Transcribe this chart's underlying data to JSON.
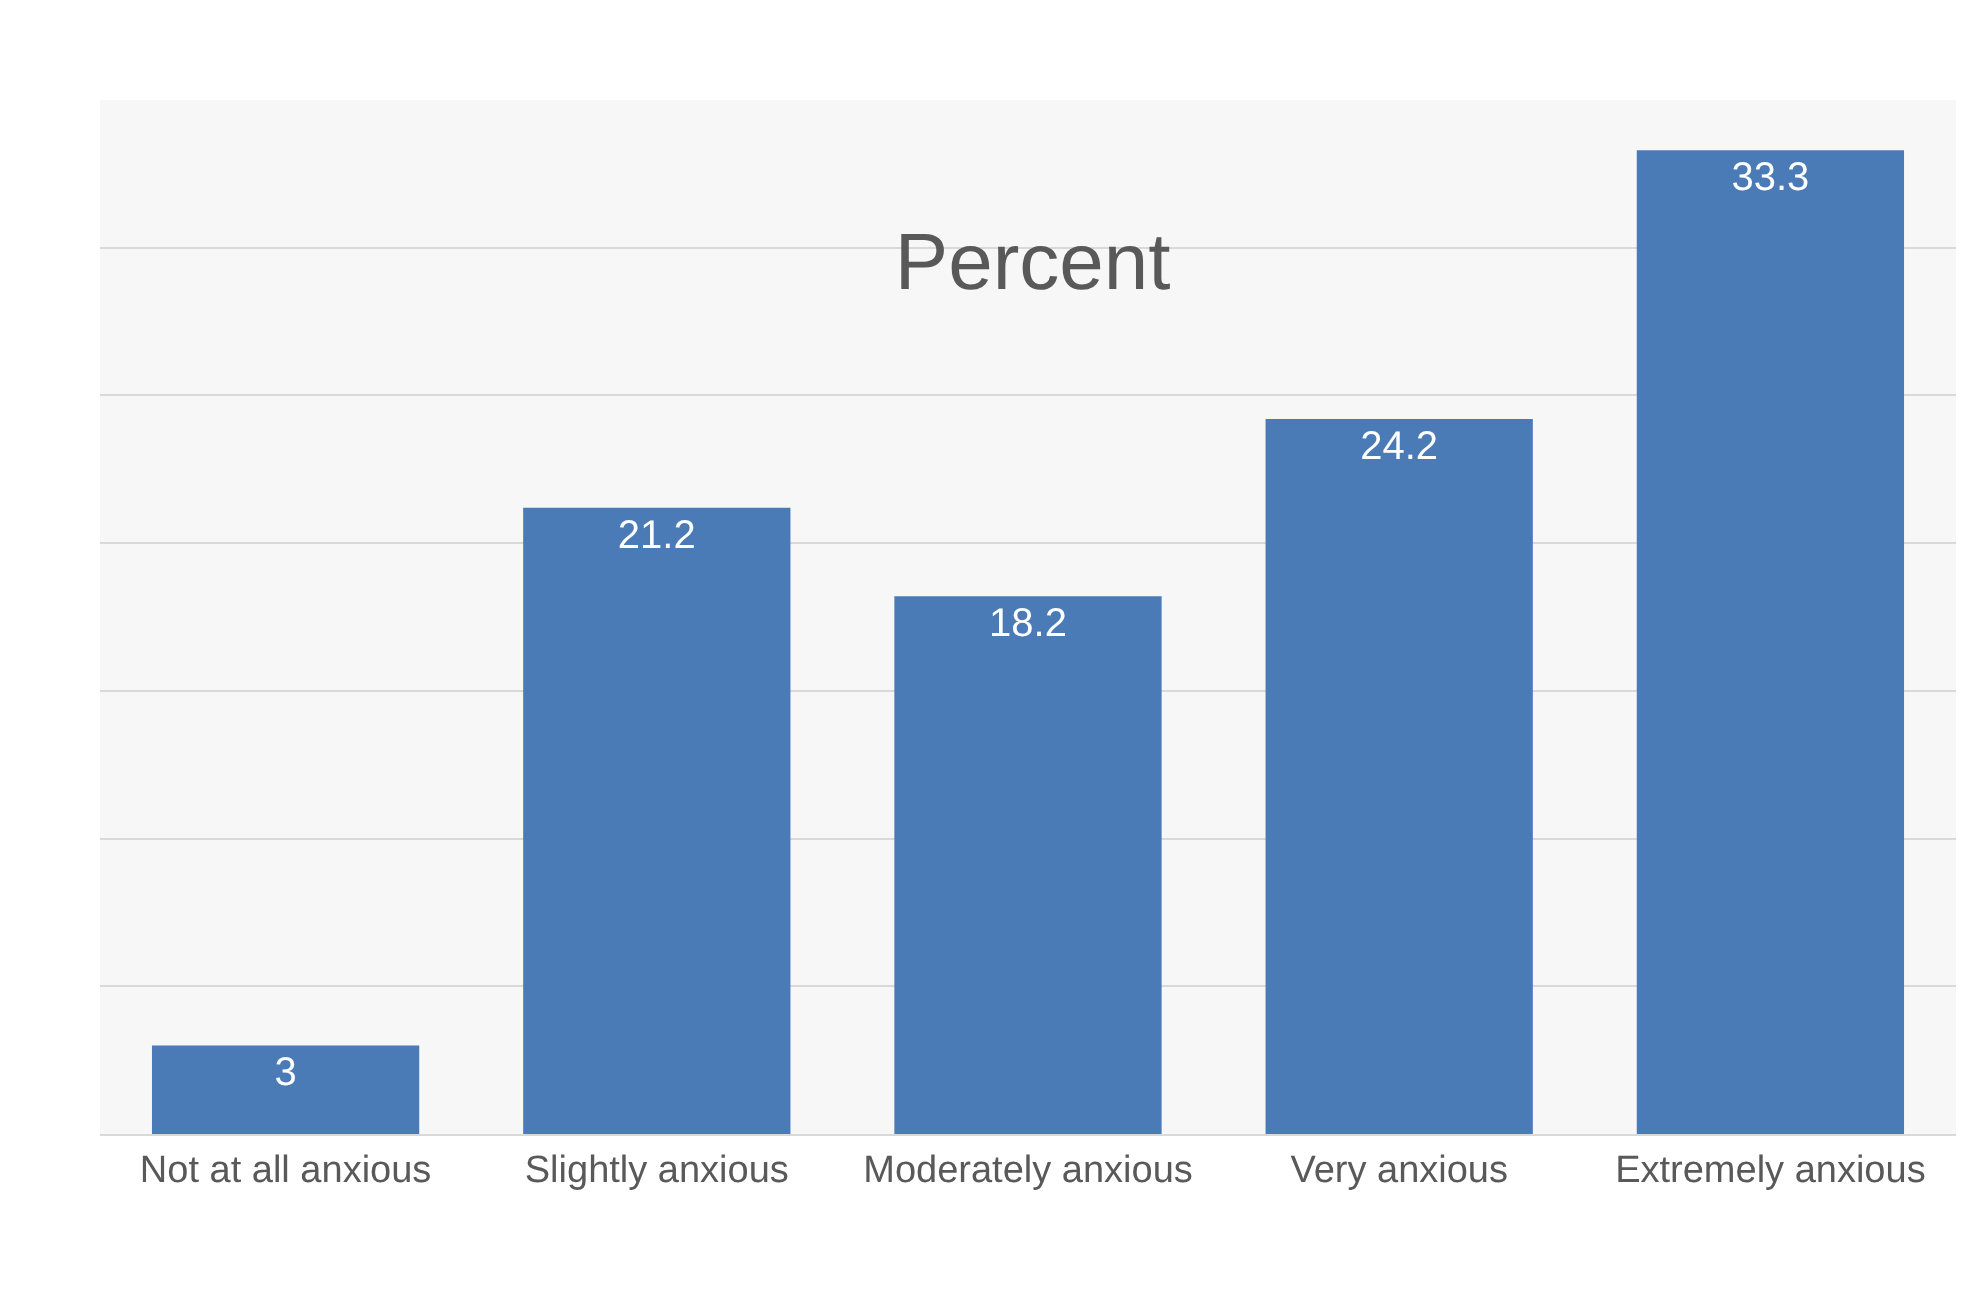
{
  "chart_data": {
    "type": "bar",
    "title": "Percent",
    "categories": [
      "Not at all anxious",
      "Slightly anxious",
      "Moderately anxious",
      "Very anxious",
      "Extremely anxious"
    ],
    "values": [
      3,
      21.2,
      18.2,
      24.2,
      33.3
    ],
    "color": "#4a7bb7",
    "data_labels": true,
    "grid": "y",
    "legend": false,
    "tick_labels": "x",
    "ylim": [
      0,
      35
    ],
    "yticks": [
      {
        "value": 0,
        "label": null
      },
      {
        "value": 5,
        "label": null
      },
      {
        "value": 10,
        "label": null
      },
      {
        "value": 15,
        "label": null
      },
      {
        "value": 20,
        "label": null
      },
      {
        "value": 25,
        "label": null
      },
      {
        "value": 30,
        "label": null
      },
      {
        "value": 35,
        "label": null
      }
    ]
  }
}
